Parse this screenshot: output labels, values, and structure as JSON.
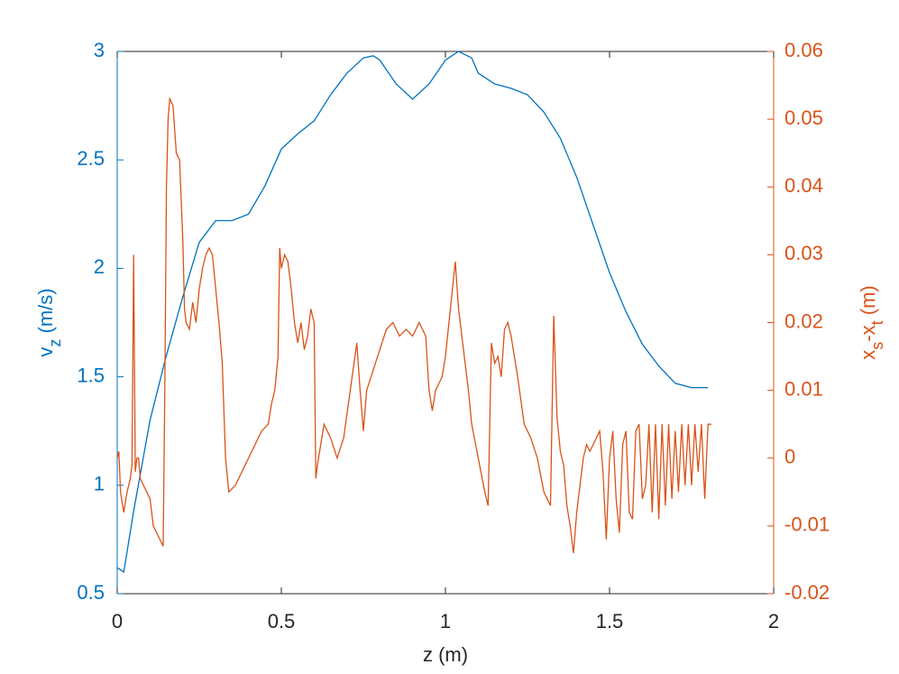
{
  "chart_data": {
    "type": "line",
    "xlabel": "z (m)",
    "ylabel": [
      "v",
      "z",
      " (m/s)"
    ],
    "y2label": [
      "x",
      "s",
      "-x",
      "t",
      " (m)"
    ],
    "xlim": [
      0,
      2
    ],
    "xticks": [
      0,
      0.5,
      1,
      1.5,
      2
    ],
    "ylim": [
      0.5,
      3
    ],
    "yticks": [
      0.5,
      1,
      1.5,
      2,
      2.5,
      3
    ],
    "ycolor": "#0072BD",
    "y2lim": [
      -0.02,
      0.06
    ],
    "y2ticks": [
      -0.02,
      -0.01,
      0,
      0.01,
      0.02,
      0.03,
      0.04,
      0.05,
      0.06
    ],
    "y2color": "#D95319",
    "series": [
      {
        "color": "#0072BD",
        "axis": "y",
        "x": [
          0,
          0.02,
          0.05,
          0.1,
          0.15,
          0.2,
          0.25,
          0.3,
          0.35,
          0.4,
          0.45,
          0.5,
          0.55,
          0.6,
          0.65,
          0.7,
          0.75,
          0.78,
          0.8,
          0.85,
          0.9,
          0.95,
          1.0,
          1.04,
          1.08,
          1.1,
          1.15,
          1.2,
          1.25,
          1.3,
          1.35,
          1.4,
          1.45,
          1.5,
          1.55,
          1.6,
          1.65,
          1.7,
          1.75,
          1.8
        ],
        "values": [
          0.62,
          0.6,
          0.88,
          1.3,
          1.6,
          1.87,
          2.12,
          2.22,
          2.22,
          2.25,
          2.38,
          2.55,
          2.62,
          2.68,
          2.8,
          2.9,
          2.97,
          2.98,
          2.96,
          2.85,
          2.78,
          2.85,
          2.96,
          3.0,
          2.97,
          2.9,
          2.85,
          2.83,
          2.8,
          2.72,
          2.6,
          2.42,
          2.2,
          1.98,
          1.8,
          1.65,
          1.55,
          1.47,
          1.45,
          1.45
        ]
      },
      {
        "color": "#D95319",
        "axis": "y2",
        "x": [
          0,
          0.005,
          0.01,
          0.02,
          0.03,
          0.04,
          0.045,
          0.05,
          0.055,
          0.06,
          0.065,
          0.07,
          0.08,
          0.09,
          0.1,
          0.11,
          0.12,
          0.13,
          0.14,
          0.145,
          0.15,
          0.155,
          0.16,
          0.17,
          0.18,
          0.19,
          0.2,
          0.205,
          0.21,
          0.22,
          0.23,
          0.24,
          0.25,
          0.26,
          0.27,
          0.28,
          0.29,
          0.3,
          0.31,
          0.32,
          0.33,
          0.34,
          0.36,
          0.38,
          0.4,
          0.42,
          0.44,
          0.46,
          0.47,
          0.48,
          0.49,
          0.495,
          0.5,
          0.51,
          0.52,
          0.53,
          0.54,
          0.55,
          0.56,
          0.57,
          0.58,
          0.59,
          0.6,
          0.605,
          0.61,
          0.62,
          0.63,
          0.65,
          0.67,
          0.69,
          0.71,
          0.73,
          0.74,
          0.75,
          0.76,
          0.78,
          0.8,
          0.82,
          0.84,
          0.86,
          0.88,
          0.9,
          0.92,
          0.94,
          0.95,
          0.96,
          0.97,
          0.99,
          1.0,
          1.03,
          1.04,
          1.05,
          1.07,
          1.08,
          1.1,
          1.12,
          1.13,
          1.14,
          1.15,
          1.16,
          1.17,
          1.18,
          1.19,
          1.2,
          1.22,
          1.24,
          1.26,
          1.28,
          1.3,
          1.32,
          1.33,
          1.34,
          1.35,
          1.36,
          1.37,
          1.38,
          1.39,
          1.4,
          1.42,
          1.43,
          1.44,
          1.45,
          1.47,
          1.48,
          1.49,
          1.5,
          1.51,
          1.52,
          1.53,
          1.54,
          1.55,
          1.56,
          1.57,
          1.58,
          1.59,
          1.6,
          1.61,
          1.62,
          1.63,
          1.64,
          1.65,
          1.66,
          1.67,
          1.68,
          1.69,
          1.7,
          1.71,
          1.72,
          1.73,
          1.74,
          1.75,
          1.76,
          1.77,
          1.78,
          1.79,
          1.8,
          1.81
        ],
        "values": [
          0.0,
          0.001,
          -0.005,
          -0.008,
          -0.005,
          -0.003,
          -0.001,
          0.03,
          -0.002,
          0.0,
          0.0,
          -0.003,
          -0.004,
          -0.005,
          -0.006,
          -0.01,
          -0.011,
          -0.012,
          -0.013,
          0.01,
          0.04,
          0.05,
          0.053,
          0.052,
          0.045,
          0.044,
          0.032,
          0.022,
          0.02,
          0.019,
          0.023,
          0.02,
          0.025,
          0.028,
          0.03,
          0.031,
          0.03,
          0.025,
          0.02,
          0.014,
          0.0,
          -0.005,
          -0.004,
          -0.002,
          0.0,
          0.002,
          0.004,
          0.005,
          0.008,
          0.01,
          0.015,
          0.031,
          0.028,
          0.03,
          0.029,
          0.025,
          0.02,
          0.017,
          0.02,
          0.016,
          0.018,
          0.022,
          0.02,
          -0.003,
          -0.001,
          0.002,
          0.005,
          0.003,
          0.0,
          0.003,
          0.01,
          0.017,
          0.01,
          0.004,
          0.01,
          0.013,
          0.016,
          0.019,
          0.02,
          0.018,
          0.019,
          0.018,
          0.02,
          0.018,
          0.01,
          0.007,
          0.01,
          0.012,
          0.015,
          0.029,
          0.022,
          0.018,
          0.01,
          0.005,
          0.0,
          -0.005,
          -0.007,
          0.017,
          0.014,
          0.015,
          0.012,
          0.019,
          0.02,
          0.018,
          0.012,
          0.005,
          0.003,
          0.0,
          -0.005,
          -0.007,
          0.021,
          0.006,
          0.001,
          -0.001,
          -0.007,
          -0.01,
          -0.014,
          -0.008,
          0.0,
          0.002,
          0.001,
          0.002,
          0.004,
          -0.002,
          -0.012,
          0.0,
          0.004,
          -0.006,
          -0.011,
          0.002,
          0.004,
          -0.008,
          -0.009,
          0.004,
          0.005,
          -0.006,
          -0.004,
          0.005,
          -0.008,
          0.005,
          -0.009,
          0.005,
          -0.007,
          0.005,
          -0.006,
          0.004,
          -0.005,
          0.005,
          -0.004,
          0.005,
          -0.004,
          0.005,
          -0.002,
          0.005,
          -0.006,
          0.005,
          0.005
        ]
      }
    ]
  }
}
